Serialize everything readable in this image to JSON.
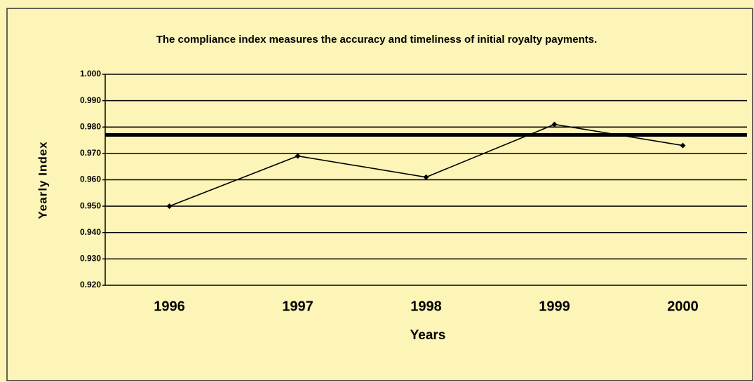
{
  "chart_data": {
    "type": "line",
    "title": "The compliance index measures the accuracy and timeliness of initial royalty payments.",
    "x_label": "Years",
    "y_label": "Yearly Index",
    "categories": [
      "1996",
      "1997",
      "1998",
      "1999",
      "2000"
    ],
    "values": [
      0.95,
      0.969,
      0.961,
      0.981,
      0.973
    ],
    "color": "#000000",
    "reference_line": 0.977,
    "ylim": [
      0.92,
      1.0
    ],
    "yticks": [
      {
        "value": 0.92,
        "label": "0.920"
      },
      {
        "value": 0.93,
        "label": "0.930"
      },
      {
        "value": 0.94,
        "label": "0.940"
      },
      {
        "value": 0.95,
        "label": "0.950"
      },
      {
        "value": 0.96,
        "label": "0.960"
      },
      {
        "value": 0.97,
        "label": "0.970"
      },
      {
        "value": 0.98,
        "label": "0.980"
      },
      {
        "value": 0.99,
        "label": "0.990"
      },
      {
        "value": 1.0,
        "label": "1.000"
      }
    ],
    "grid": true
  }
}
